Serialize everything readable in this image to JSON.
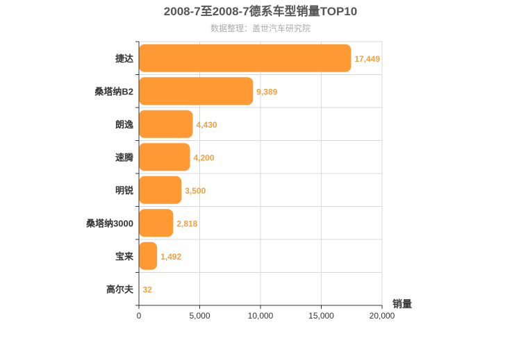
{
  "chart_data": {
    "type": "bar",
    "orientation": "horizontal",
    "title": "2008-7至2008-7德系车型销量TOP10",
    "subtitle": "数据整理：盖世汽车研究院",
    "xlabel": "销量",
    "ylabel": "",
    "categories": [
      "捷达",
      "桑塔纳B2",
      "朗逸",
      "速腾",
      "明锐",
      "桑塔纳3000",
      "宝来",
      "高尔夫"
    ],
    "values": [
      17449,
      9389,
      4430,
      4200,
      3500,
      2818,
      1492,
      32
    ],
    "value_labels": [
      "17,449",
      "9,389",
      "4,430",
      "4,200",
      "3,500",
      "2,818",
      "1,492",
      "32"
    ],
    "xlim": [
      0,
      20000
    ],
    "xticks": [
      0,
      5000,
      10000,
      15000,
      20000
    ],
    "xtick_labels": [
      "0",
      "5,000",
      "10,000",
      "15,000",
      "20,000"
    ],
    "grid": true,
    "legend": "none",
    "bar_color": "#ff9933",
    "value_label_color": "#f0a040"
  }
}
